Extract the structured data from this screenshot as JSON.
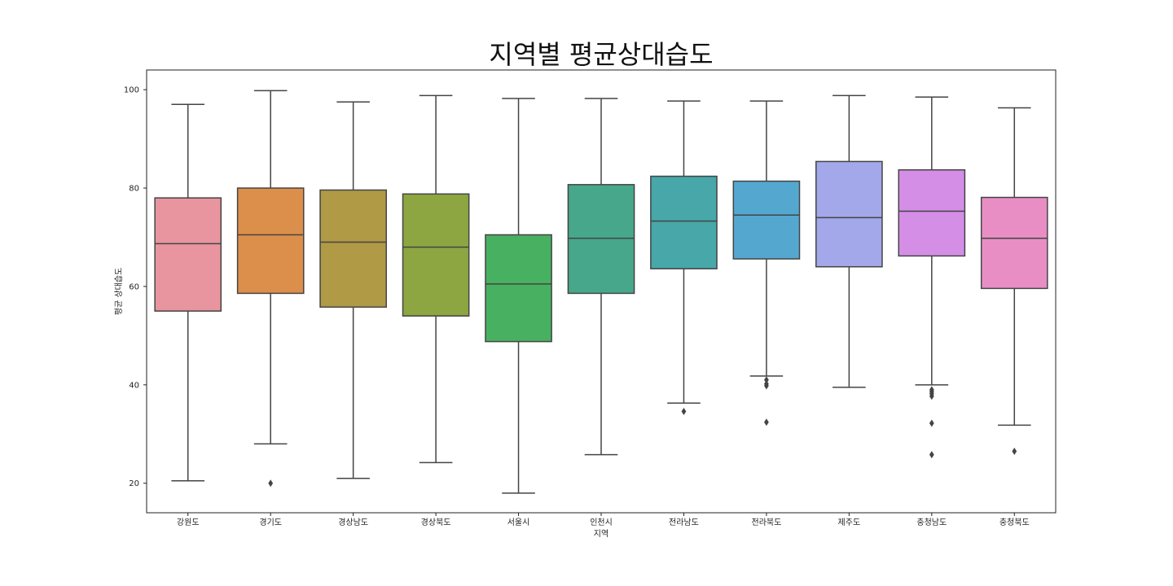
{
  "chart_data": {
    "type": "box",
    "title": "지역별 평균상대습도",
    "xlabel": "지역",
    "ylabel": "평균 상대습도",
    "ylim": [
      14,
      104
    ],
    "yticks": [
      20,
      40,
      60,
      80,
      100
    ],
    "grid": false,
    "categories": [
      "강원도",
      "경기도",
      "경상남도",
      "경상북도",
      "서울시",
      "인천시",
      "전라남도",
      "전라북도",
      "제주도",
      "충청남도",
      "충청북도"
    ],
    "colors": [
      "#e8959f",
      "#dc8f4b",
      "#b09a45",
      "#8ea641",
      "#48b061",
      "#47a78b",
      "#47a7a9",
      "#54a8d0",
      "#a3a8ea",
      "#d48ee6",
      "#e88ec5"
    ],
    "boxes": [
      {
        "whislo": 20.5,
        "q1": 55.0,
        "med": 68.7,
        "q3": 78.0,
        "whishi": 97.0,
        "fliers": []
      },
      {
        "whislo": 28.0,
        "q1": 58.6,
        "med": 70.5,
        "q3": 80.0,
        "whishi": 99.8,
        "fliers": [
          20.0
        ]
      },
      {
        "whislo": 21.0,
        "q1": 55.8,
        "med": 69.0,
        "q3": 79.6,
        "whishi": 97.5,
        "fliers": []
      },
      {
        "whislo": 24.2,
        "q1": 54.0,
        "med": 68.0,
        "q3": 78.8,
        "whishi": 98.8,
        "fliers": []
      },
      {
        "whislo": 18.0,
        "q1": 48.8,
        "med": 60.5,
        "q3": 70.5,
        "whishi": 98.2,
        "fliers": []
      },
      {
        "whislo": 25.8,
        "q1": 58.6,
        "med": 69.8,
        "q3": 80.7,
        "whishi": 98.2,
        "fliers": []
      },
      {
        "whislo": 36.3,
        "q1": 63.6,
        "med": 73.3,
        "q3": 82.4,
        "whishi": 97.7,
        "fliers": [
          34.6
        ]
      },
      {
        "whislo": 41.8,
        "q1": 65.6,
        "med": 74.5,
        "q3": 81.4,
        "whishi": 97.7,
        "fliers": [
          41.0,
          40.2,
          39.8,
          32.4
        ]
      },
      {
        "whislo": 39.5,
        "q1": 64.0,
        "med": 74.0,
        "q3": 85.4,
        "whishi": 98.8,
        "fliers": []
      },
      {
        "whislo": 40.0,
        "q1": 66.2,
        "med": 75.3,
        "q3": 83.7,
        "whishi": 98.5,
        "fliers": [
          39.0,
          38.6,
          38.2,
          37.7,
          32.2,
          25.8
        ]
      },
      {
        "whislo": 31.8,
        "q1": 59.6,
        "med": 69.8,
        "q3": 78.1,
        "whishi": 96.3,
        "fliers": [
          26.5
        ]
      }
    ]
  }
}
